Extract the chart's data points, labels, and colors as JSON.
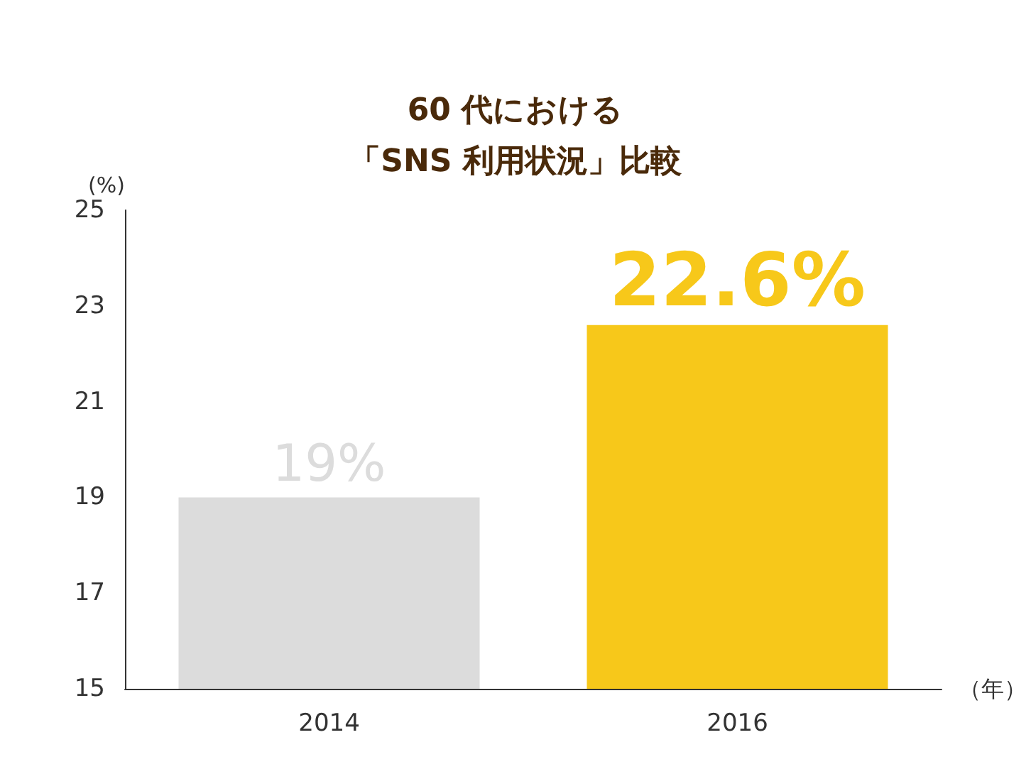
{
  "chart_data": {
    "type": "bar",
    "title": "60 代における",
    "subtitle": "「SNS 利用状況」比較",
    "ylabel": "(%)",
    "xlabel": "（年）",
    "categories": [
      "2014",
      "2016"
    ],
    "values": [
      19,
      22.6
    ],
    "colors": [
      "#dcdcdc",
      "#f7c81a"
    ],
    "value_labels": [
      "19%",
      "22.6%"
    ],
    "ylim": [
      15,
      25
    ],
    "yticks": [
      15,
      17,
      19,
      21,
      23,
      25
    ],
    "grid": false
  }
}
